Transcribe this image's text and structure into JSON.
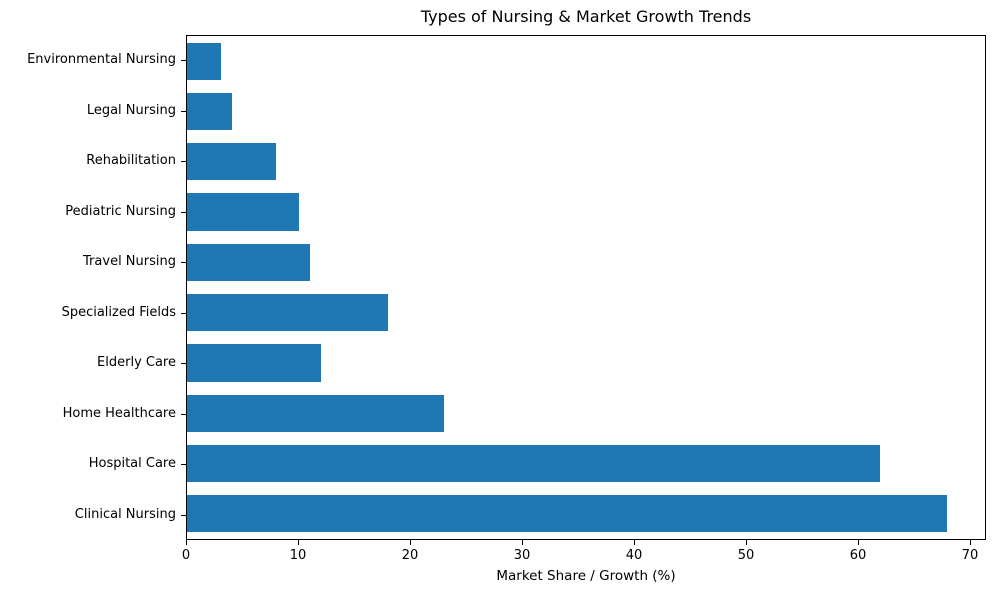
{
  "chart_data": {
    "type": "bar",
    "orientation": "horizontal",
    "title": "Types of Nursing & Market Growth Trends",
    "xlabel": "Market Share / Growth (%)",
    "ylabel": "",
    "categories": [
      "Environmental Nursing",
      "Legal Nursing",
      "Rehabilitation",
      "Pediatric Nursing",
      "Travel Nursing",
      "Specialized Fields",
      "Elderly Care",
      "Home Healthcare",
      "Hospital Care",
      "Clinical Nursing"
    ],
    "values": [
      3,
      4,
      8,
      10,
      11,
      18,
      12,
      23,
      62,
      68
    ],
    "xlim": [
      0,
      71.4
    ],
    "xticks": [
      0,
      10,
      20,
      30,
      40,
      50,
      60,
      70
    ],
    "grid": false,
    "legend": null,
    "bar_color": "#1f77b4",
    "axis_color": "#000000",
    "background_color": "#ffffff"
  }
}
